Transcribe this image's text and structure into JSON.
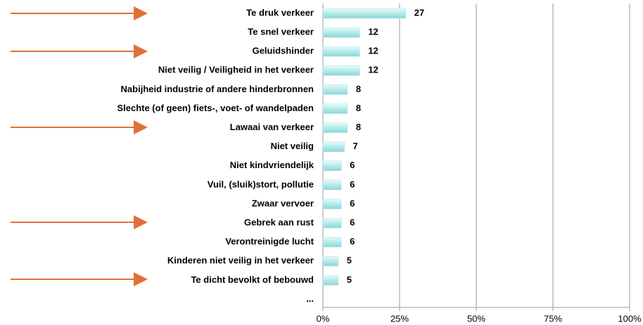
{
  "chart_data": {
    "type": "bar",
    "orientation": "horizontal",
    "categories": [
      "Te druk verkeer",
      "Te snel verkeer",
      "Geluidshinder",
      "Niet veilig / Veiligheid in het verkeer",
      "Nabijheid industrie of andere hinderbronnen",
      "Slechte (of geen) fiets-, voet- of wandelpaden",
      "Lawaai van verkeer",
      "Niet veilig",
      "Niet kindvriendelijk",
      "Vuil, (sluik)stort, pollutie",
      "Zwaar vervoer",
      "Gebrek aan rust",
      "Verontreinigde lucht",
      "Kinderen niet veilig in het verkeer",
      "Te dicht bevolkt of bebouwd",
      "..."
    ],
    "values": [
      27,
      12,
      12,
      12,
      8,
      8,
      8,
      7,
      6,
      6,
      6,
      6,
      6,
      5,
      5,
      null
    ],
    "color": "#a8e4e4",
    "xlim": [
      0,
      100
    ],
    "xticks": [
      {
        "value": 0,
        "label": "0%"
      },
      {
        "value": 25,
        "label": "25%"
      },
      {
        "value": 50,
        "label": "50%"
      },
      {
        "value": 75,
        "label": "75%"
      },
      {
        "value": 100,
        "label": "100%"
      }
    ],
    "grid": true
  }
}
